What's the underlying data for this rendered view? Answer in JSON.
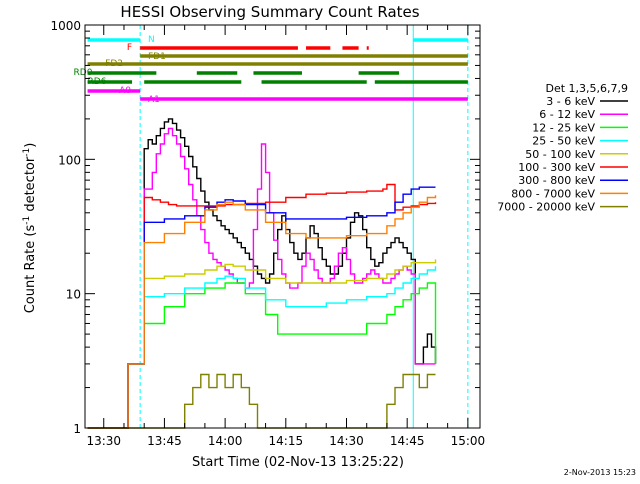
{
  "chart_data": {
    "type": "line",
    "title": "HESSI Observing Summary Count Rates",
    "xlabel": "Start Time (02-Nov-13 13:25:22)",
    "ylabel_main": "Count Rate (s",
    "ylabel_sup1": "-1",
    "ylabel_mid": " detector",
    "ylabel_sup2": "-1",
    "ylabel_end": ")",
    "yscale": "log",
    "ylim": [
      1,
      1000
    ],
    "xlim": [
      "13:25:22",
      "15:03:00"
    ],
    "x_ticks": [
      "13:30",
      "13:45",
      "14:00",
      "14:15",
      "14:30",
      "14:45",
      "15:00"
    ],
    "x_tick_minutes": [
      30,
      45,
      60,
      75,
      90,
      105,
      120
    ],
    "y_ticks": [
      "1",
      "10",
      "100",
      "1000"
    ],
    "y_tick_values": [
      1,
      10,
      100,
      1000
    ],
    "legend_title": "Det 1,3,5,6,7,9",
    "legend_placement": "right",
    "series": [
      {
        "name": "3 - 6 keV",
        "color": "#000000",
        "x": [
          26,
          35.5,
          36,
          39,
          40,
          41,
          42,
          43,
          44,
          45,
          46,
          47,
          48,
          49,
          50,
          51,
          52,
          53,
          54,
          55,
          56,
          57,
          58,
          59,
          60,
          61,
          62,
          63,
          64,
          65,
          66,
          67,
          68,
          69,
          70,
          71,
          72,
          73,
          74,
          75,
          76,
          77,
          78,
          79,
          80,
          81,
          82,
          83,
          84,
          85,
          86,
          87,
          88,
          89,
          90,
          91,
          92,
          93,
          94,
          95,
          96,
          97,
          98,
          99,
          100,
          101,
          102,
          103,
          104,
          105,
          106,
          107,
          108,
          109,
          110,
          111,
          112
        ],
        "y": [
          1,
          1,
          3,
          3,
          120,
          140,
          130,
          150,
          170,
          190,
          200,
          185,
          165,
          145,
          125,
          105,
          88,
          72,
          58,
          48,
          42,
          38,
          35,
          32,
          30,
          28,
          26,
          24,
          22,
          20,
          18,
          16,
          14,
          13,
          12,
          14,
          20,
          30,
          38,
          30,
          24,
          20,
          18,
          20,
          26,
          32,
          28,
          22,
          18,
          16,
          14,
          14,
          16,
          20,
          26,
          34,
          40,
          38,
          30,
          22,
          18,
          16,
          17,
          20,
          22,
          24,
          26,
          24,
          22,
          20,
          18,
          3,
          3,
          4,
          5,
          4,
          3
        ]
      },
      {
        "name": "6 - 12 keV",
        "color": "#ff00ff",
        "x": [
          26,
          35.5,
          36,
          39,
          40,
          41,
          42,
          43,
          44,
          45,
          46,
          47,
          48,
          49,
          50,
          51,
          52,
          53,
          54,
          55,
          56,
          57,
          58,
          59,
          60,
          61,
          62,
          63,
          64,
          65,
          66,
          67,
          68,
          69,
          70,
          71,
          72,
          73,
          74,
          75,
          76,
          77,
          78,
          79,
          80,
          81,
          82,
          83,
          84,
          85,
          86,
          87,
          88,
          89,
          90,
          91,
          92,
          93,
          94,
          95,
          96,
          97,
          98,
          99,
          100,
          101,
          102,
          103,
          104,
          105,
          106,
          107,
          108,
          109,
          110,
          111,
          112
        ],
        "y": [
          1,
          1,
          3,
          3,
          60,
          60,
          80,
          110,
          130,
          155,
          170,
          150,
          130,
          105,
          85,
          65,
          50,
          38,
          30,
          24,
          20,
          18,
          17,
          16,
          15,
          14,
          13,
          12,
          12,
          11,
          12,
          30,
          60,
          130,
          80,
          40,
          25,
          18,
          14,
          12,
          11,
          11,
          12,
          16,
          20,
          18,
          15,
          13,
          12,
          12,
          13,
          16,
          20,
          22,
          18,
          14,
          12,
          12,
          13,
          14,
          15,
          14,
          13,
          12,
          12,
          13,
          14,
          15,
          16,
          15,
          14,
          3,
          3,
          3,
          3,
          3,
          3
        ]
      },
      {
        "name": "12 - 25 keV",
        "color": "#00ff00",
        "x": [
          26,
          35.5,
          36,
          39,
          40,
          45,
          50,
          55,
          60,
          65,
          70,
          73,
          75,
          80,
          85,
          90,
          95,
          100,
          102,
          104,
          106,
          108,
          110,
          112
        ],
        "y": [
          1,
          1,
          3,
          3,
          6,
          8,
          10,
          11,
          12,
          10,
          7,
          5,
          5,
          5,
          5,
          5,
          6,
          7,
          8,
          9,
          10,
          11,
          12,
          3
        ]
      },
      {
        "name": "25 - 50 keV",
        "color": "#00ffff",
        "x": [
          26,
          35.5,
          36,
          39,
          40,
          45,
          50,
          55,
          58,
          60,
          62,
          65,
          70,
          75,
          80,
          85,
          90,
          95,
          100,
          102,
          104,
          106,
          108,
          110,
          112
        ],
        "y": [
          1,
          1,
          3,
          3,
          9.5,
          10,
          11,
          12,
          13,
          13.5,
          13,
          11,
          9,
          8,
          8,
          8.5,
          9,
          9.5,
          10,
          11,
          12,
          13,
          14,
          15,
          16
        ]
      },
      {
        "name": "50 - 100 keV",
        "color": "#cccc00",
        "x": [
          26,
          35.5,
          36,
          39,
          40,
          45,
          50,
          55,
          58,
          60,
          62,
          65,
          70,
          75,
          80,
          85,
          90,
          95,
          100,
          102,
          104,
          106,
          108,
          110,
          112
        ],
        "y": [
          1,
          1,
          3,
          3,
          13,
          13.5,
          14,
          15,
          16,
          16.5,
          16,
          15,
          13,
          12,
          12,
          12,
          12.5,
          13,
          14,
          15,
          16,
          17,
          17,
          17,
          18
        ]
      },
      {
        "name": "100 - 300 keV",
        "color": "#ff0000",
        "x": [
          26,
          35.5,
          36,
          39,
          40,
          42,
          44,
          46,
          48,
          50,
          55,
          60,
          65,
          70,
          75,
          80,
          85,
          90,
          95,
          99,
          100,
          102,
          104,
          106,
          108,
          110,
          112
        ],
        "y": [
          1,
          1,
          3,
          3,
          52,
          50,
          48,
          46,
          45,
          45,
          45,
          46,
          47,
          48,
          52,
          55,
          56,
          57,
          58,
          60,
          65,
          42,
          44,
          45,
          46,
          47,
          48
        ]
      },
      {
        "name": "300 - 800 keV",
        "color": "#0000ff",
        "x": [
          26,
          35.5,
          36,
          39,
          40,
          45,
          50,
          55,
          58,
          60,
          62,
          65,
          70,
          75,
          80,
          85,
          90,
          95,
          100,
          102,
          104,
          106,
          108,
          110,
          112
        ],
        "y": [
          1,
          1,
          3,
          3,
          34,
          36,
          38,
          44,
          48,
          50,
          49,
          46,
          40,
          36,
          36,
          36,
          37,
          38,
          40,
          48,
          55,
          60,
          62,
          62,
          62
        ]
      },
      {
        "name": "800 - 7000 keV",
        "color": "#ff8000",
        "x": [
          26,
          35.5,
          36,
          39,
          40,
          45,
          50,
          55,
          58,
          60,
          62,
          65,
          70,
          75,
          80,
          85,
          90,
          95,
          100,
          102,
          104,
          106,
          108,
          110,
          112
        ],
        "y": [
          1,
          1,
          3,
          3,
          24,
          28,
          34,
          42,
          46,
          48,
          46,
          42,
          34,
          28,
          26,
          26,
          27,
          28,
          32,
          36,
          40,
          44,
          48,
          52,
          54
        ]
      },
      {
        "name": "7000 - 20000 keV",
        "color": "#808000",
        "x": [
          26,
          35.5,
          36,
          39,
          40,
          42,
          44,
          46,
          48,
          50,
          52,
          54,
          56,
          58,
          60,
          62,
          64,
          66,
          68,
          70,
          72,
          74,
          76,
          78,
          80,
          82,
          84,
          86,
          88,
          90,
          92,
          94,
          96,
          98,
          100,
          102,
          104,
          106,
          108,
          110,
          112
        ],
        "y": [
          1,
          1,
          1,
          1,
          1,
          1,
          1,
          1,
          1,
          1.5,
          2,
          2.5,
          2,
          2.5,
          2,
          2.5,
          2,
          1.5,
          1,
          1,
          1,
          1,
          1,
          1,
          1,
          1,
          1,
          1,
          1,
          1,
          1,
          1,
          1,
          1,
          1.5,
          2,
          2.5,
          2.5,
          2,
          2.5,
          2.5
        ]
      }
    ],
    "attenuator_bars": [
      {
        "label": "N",
        "color": "#00ffff",
        "segments": [
          [
            26,
            39
          ],
          [
            106.5,
            120
          ]
        ]
      },
      {
        "label": "F",
        "color": "#ff0000",
        "segments": [
          [
            39,
            78
          ],
          [
            80,
            86
          ],
          [
            89,
            93
          ],
          [
            95,
            95.5
          ]
        ]
      },
      {
        "label": "FD1",
        "color": "#808000",
        "segments": [
          [
            39,
            120
          ]
        ]
      },
      {
        "label": "FD2",
        "color": "#808000",
        "segments": [
          [
            26,
            120
          ]
        ]
      },
      {
        "label": "RD0",
        "color": "#008000",
        "segments": [
          [
            26,
            43
          ],
          [
            53,
            63
          ],
          [
            67,
            79
          ],
          [
            93,
            103
          ]
        ]
      },
      {
        "label": "RD6",
        "color": "#008000",
        "segments": [
          [
            26,
            37
          ],
          [
            40,
            64
          ],
          [
            69,
            95
          ],
          [
            97,
            120
          ]
        ]
      },
      {
        "label": "A0",
        "color": "#ff00ff",
        "segments": [
          [
            26,
            39
          ]
        ]
      },
      {
        "label": "A1",
        "color": "#ff00ff",
        "segments": [
          [
            39,
            120
          ]
        ]
      }
    ],
    "vertical_lines": [
      {
        "x_minute": 39,
        "color": "#00ffff",
        "style": "dashed"
      },
      {
        "x_minute": 106.5,
        "color": "#00ffff",
        "style": "solid"
      },
      {
        "x_minute": 120,
        "color": "#00ffff",
        "style": "dashed"
      }
    ]
  },
  "footer_timestamp": "2-Nov-2013 15:23"
}
